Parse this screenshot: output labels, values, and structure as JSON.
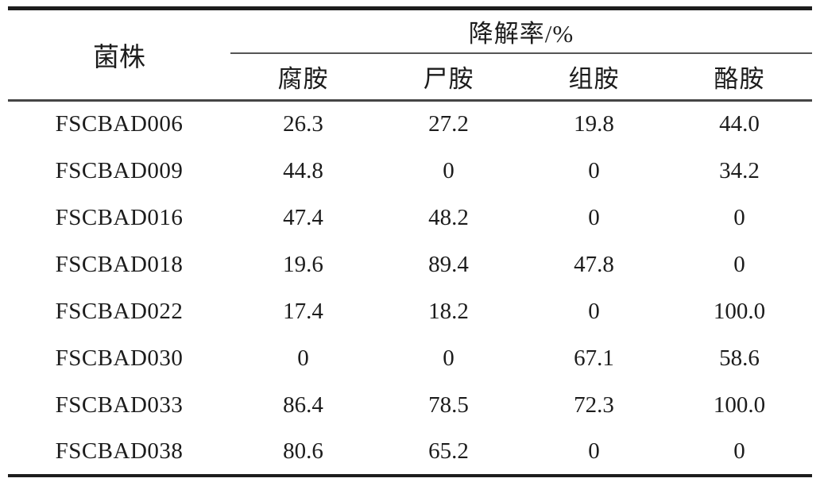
{
  "table": {
    "col1_header": "菌株",
    "group_header": "降解率/%",
    "sub_headers": [
      "腐胺",
      "尸胺",
      "组胺",
      "酪胺"
    ],
    "rows": [
      {
        "strain": "FSCBAD006",
        "values": [
          "26.3",
          "27.2",
          "19.8",
          "44.0"
        ]
      },
      {
        "strain": "FSCBAD009",
        "values": [
          "44.8",
          "0",
          "0",
          "34.2"
        ]
      },
      {
        "strain": "FSCBAD016",
        "values": [
          "47.4",
          "48.2",
          "0",
          "0"
        ]
      },
      {
        "strain": "FSCBAD018",
        "values": [
          "19.6",
          "89.4",
          "47.8",
          "0"
        ]
      },
      {
        "strain": "FSCBAD022",
        "values": [
          "17.4",
          "18.2",
          "0",
          "100.0"
        ]
      },
      {
        "strain": "FSCBAD030",
        "values": [
          "0",
          "0",
          "67.1",
          "58.6"
        ]
      },
      {
        "strain": "FSCBAD033",
        "values": [
          "86.4",
          "78.5",
          "72.3",
          "100.0"
        ]
      },
      {
        "strain": "FSCBAD038",
        "values": [
          "80.6",
          "65.2",
          "0",
          "0"
        ]
      }
    ]
  },
  "colors": {
    "text": "#1c1c1c",
    "rule_heavy": "#1d1d1d",
    "rule_medium": "#454545",
    "rule_light": "#555555",
    "background": "#ffffff"
  }
}
